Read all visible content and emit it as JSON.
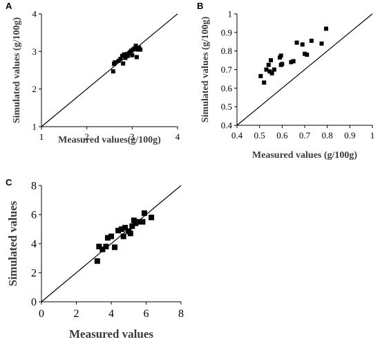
{
  "chart_data": [
    {
      "panel": "A",
      "type": "scatter",
      "xlabel": "Measured values(g/100g)",
      "ylabel": "Simulated values (g/100g)",
      "xlim": [
        1,
        4
      ],
      "ylim": [
        1,
        4
      ],
      "xticks": [
        "1",
        "2",
        "3",
        "4"
      ],
      "yticks": [
        "1",
        "2",
        "3",
        "4"
      ],
      "reference_line": "1:1",
      "grid": false,
      "legend": "none",
      "points": [
        [
          2.58,
          2.47
        ],
        [
          2.6,
          2.67
        ],
        [
          2.62,
          2.71
        ],
        [
          2.7,
          2.75
        ],
        [
          2.74,
          2.8
        ],
        [
          2.78,
          2.88
        ],
        [
          2.8,
          2.68
        ],
        [
          2.82,
          2.92
        ],
        [
          2.85,
          2.83
        ],
        [
          2.88,
          2.93
        ],
        [
          2.9,
          2.88
        ],
        [
          2.93,
          2.95
        ],
        [
          2.95,
          2.98
        ],
        [
          2.98,
          3.02
        ],
        [
          3.0,
          2.9
        ],
        [
          3.02,
          3.05
        ],
        [
          3.05,
          3.08
        ],
        [
          3.08,
          3.15
        ],
        [
          3.1,
          2.85
        ],
        [
          3.12,
          3.05
        ],
        [
          3.15,
          3.1
        ],
        [
          3.18,
          3.05
        ]
      ]
    },
    {
      "panel": "B",
      "type": "scatter",
      "xlabel": "Measured values (g/100g)",
      "ylabel": "Simulated values (g/100g)",
      "xlim": [
        0.4,
        1.0
      ],
      "ylim": [
        0.4,
        1.0
      ],
      "xticks": [
        "0.4",
        "0.5",
        "0.6",
        "0.7",
        "0.8",
        "0.9",
        "1"
      ],
      "yticks": [
        "0.4",
        "0.5",
        "0.6",
        "0.7",
        "0.8",
        "0.9",
        "1"
      ],
      "reference_line": "1:1",
      "grid": false,
      "legend": "none",
      "points": [
        [
          0.505,
          0.665
        ],
        [
          0.52,
          0.63
        ],
        [
          0.53,
          0.7
        ],
        [
          0.54,
          0.725
        ],
        [
          0.545,
          0.69
        ],
        [
          0.55,
          0.75
        ],
        [
          0.555,
          0.68
        ],
        [
          0.565,
          0.7
        ],
        [
          0.59,
          0.765
        ],
        [
          0.595,
          0.775
        ],
        [
          0.595,
          0.725
        ],
        [
          0.6,
          0.73
        ],
        [
          0.64,
          0.74
        ],
        [
          0.65,
          0.745
        ],
        [
          0.665,
          0.845
        ],
        [
          0.69,
          0.835
        ],
        [
          0.7,
          0.785
        ],
        [
          0.71,
          0.78
        ],
        [
          0.73,
          0.855
        ],
        [
          0.775,
          0.84
        ],
        [
          0.795,
          0.92
        ]
      ]
    },
    {
      "panel": "C",
      "type": "scatter",
      "xlabel": "Measured values",
      "ylabel": "Simulated values",
      "xlim": [
        0,
        8
      ],
      "ylim": [
        0,
        8
      ],
      "xticks": [
        "0",
        "2",
        "4",
        "6",
        "8"
      ],
      "yticks": [
        "0",
        "2",
        "4",
        "6",
        "8"
      ],
      "reference_line": "1:1",
      "grid": false,
      "legend": "none",
      "points": [
        [
          3.2,
          2.8
        ],
        [
          3.3,
          3.8
        ],
        [
          3.5,
          3.6
        ],
        [
          3.7,
          3.8
        ],
        [
          3.8,
          4.4
        ],
        [
          4.0,
          4.5
        ],
        [
          4.2,
          3.75
        ],
        [
          4.4,
          4.9
        ],
        [
          4.6,
          5.0
        ],
        [
          4.7,
          4.5
        ],
        [
          4.8,
          5.1
        ],
        [
          5.0,
          4.85
        ],
        [
          5.1,
          4.7
        ],
        [
          5.2,
          5.2
        ],
        [
          5.3,
          5.6
        ],
        [
          5.4,
          5.4
        ],
        [
          5.6,
          5.5
        ],
        [
          5.8,
          5.5
        ],
        [
          5.9,
          6.1
        ],
        [
          6.3,
          5.8
        ]
      ]
    }
  ]
}
